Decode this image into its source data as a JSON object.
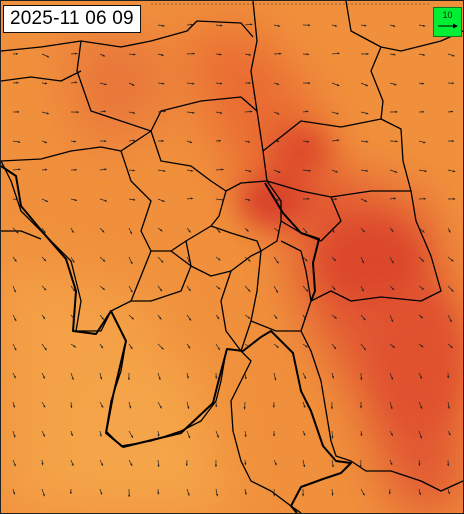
{
  "map": {
    "timestamp": "2025-11 06 09",
    "wind_scale": {
      "label": "10",
      "color": "#00ee33"
    },
    "field_colors": {
      "base": "#f0903c",
      "light": "#f4a146",
      "dark": "#dd4a2a",
      "darkest": "#cf3524"
    },
    "border_color": "#000000",
    "wind_vector_color": "#222222"
  }
}
